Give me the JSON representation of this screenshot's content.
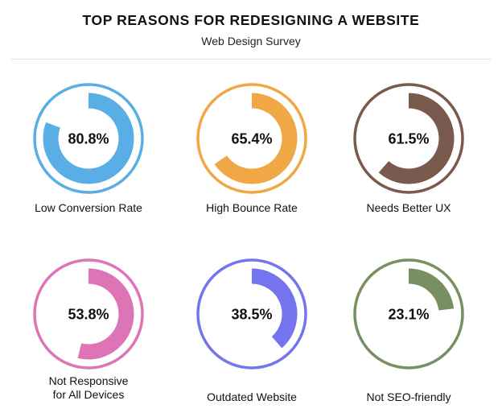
{
  "header": {
    "title": "TOP REASONS FOR REDESIGNING A WEBSITE",
    "subtitle": "Web Design Survey"
  },
  "chart_data": {
    "type": "pie",
    "title": "TOP REASONS FOR REDESIGNING A WEBSITE",
    "subtitle": "Web Design Survey",
    "unit": "%",
    "items": [
      {
        "label": "Low Conversion Rate",
        "value": 80.8,
        "display": "80.8%",
        "color": "#5aaee6"
      },
      {
        "label": "High Bounce Rate",
        "value": 65.4,
        "display": "65.4%",
        "color": "#efa845"
      },
      {
        "label": "Needs Better UX",
        "value": 61.5,
        "display": "61.5%",
        "color": "#7a5a4c"
      },
      {
        "label": "Not Responsive\nfor All Devices",
        "value": 53.8,
        "display": "53.8%",
        "color": "#dd74b6"
      },
      {
        "label": "Outdated Website",
        "value": 38.5,
        "display": "38.5%",
        "color": "#7474ee"
      },
      {
        "label": "Not SEO-friendly",
        "value": 23.1,
        "display": "23.1%",
        "color": "#788f62"
      }
    ]
  }
}
